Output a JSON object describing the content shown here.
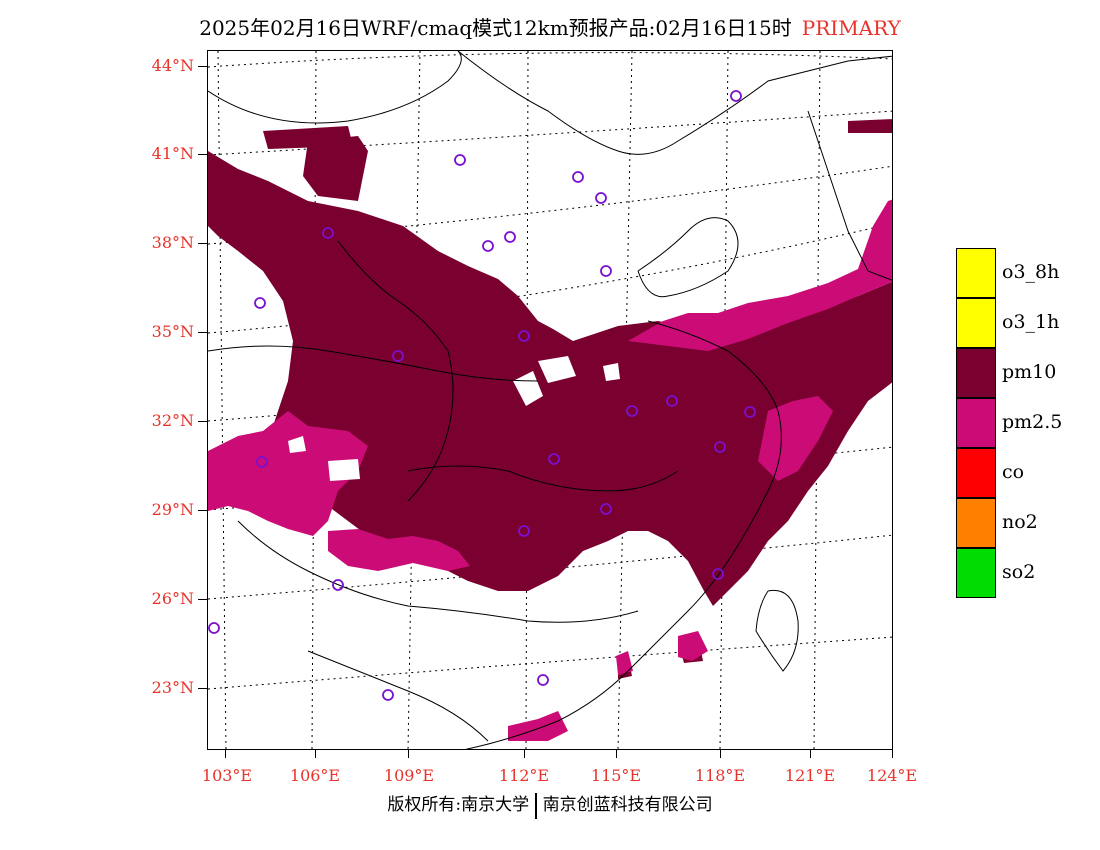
{
  "title": {
    "main": "2025年02月16日WRF/cmaq模式12km预报产品:02月16日15时",
    "tag": "PRIMARY"
  },
  "axes": {
    "lat_labels": [
      "44°N",
      "41°N",
      "38°N",
      "35°N",
      "32°N",
      "29°N",
      "26°N",
      "23°N"
    ],
    "lon_labels": [
      "103°E",
      "106°E",
      "109°E",
      "112°E",
      "115°E",
      "118°E",
      "121°E",
      "124°E"
    ],
    "label_color": "#e8322a"
  },
  "legend": [
    {
      "label": "o3_8h",
      "color": "#ffff00"
    },
    {
      "label": "o3_1h",
      "color": "#ffff00"
    },
    {
      "label": "pm10",
      "color": "#7a0030"
    },
    {
      "label": "pm2.5",
      "color": "#cc0c76"
    },
    {
      "label": "co",
      "color": "#ff0000"
    },
    {
      "label": "no2",
      "color": "#ff8000"
    },
    {
      "label": "so2",
      "color": "#00dd00"
    }
  ],
  "footer": {
    "left": "版权所有:南京大学",
    "right": "南京创蓝科技有限公司"
  }
}
